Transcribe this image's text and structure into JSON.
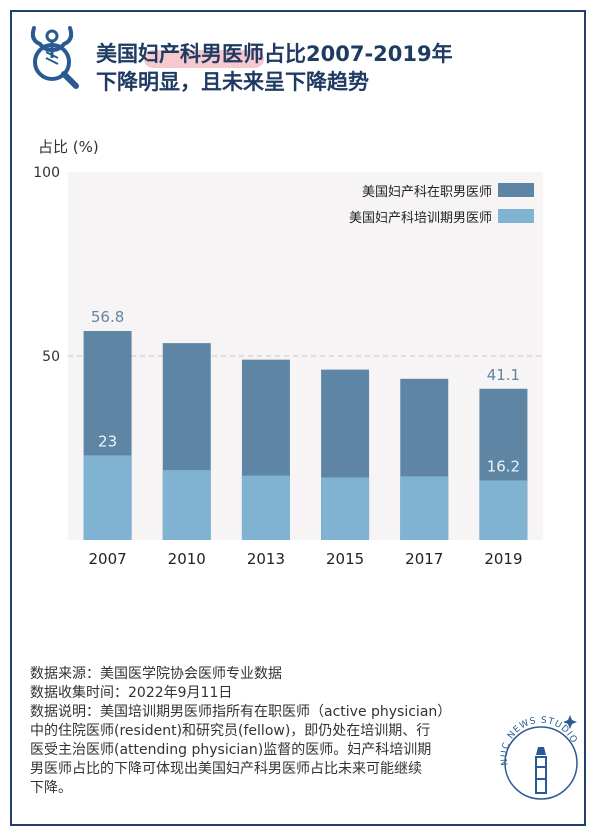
{
  "header": {
    "title_line1": "美国妇产科男医师占比2007-2019年",
    "title_line2": "下降明显，且未来呈下降趋势"
  },
  "chart_data": {
    "type": "bar",
    "stacked": true,
    "title": "美国妇产科男医师占比2007-2019年下降明显，且未来呈下降趋势",
    "ylabel": "占比 (%)",
    "xlabel": "",
    "ylim": [
      0,
      100
    ],
    "yticks": [
      50,
      100
    ],
    "reference_line": 50,
    "categories": [
      "2007",
      "2010",
      "2013",
      "2015",
      "2017",
      "2019"
    ],
    "series": [
      {
        "name": "美国妇产科培训期男医师",
        "values": [
          23,
          19,
          17.5,
          17,
          17.3,
          16.2
        ],
        "color": "#7fb3d1"
      },
      {
        "name": "美国妇产科在职男医师",
        "values": [
          56.8,
          53.5,
          49,
          46.3,
          43.8,
          41.1
        ],
        "color": "#5e86a4"
      }
    ],
    "data_labels": [
      {
        "category": "2007",
        "series": "美国妇产科在职男医师",
        "text": "56.8"
      },
      {
        "category": "2007",
        "series": "美国妇产科培训期男医师",
        "text": "23"
      },
      {
        "category": "2019",
        "series": "美国妇产科在职男医师",
        "text": "41.1"
      },
      {
        "category": "2019",
        "series": "美国妇产科培训期男医师",
        "text": "16.2"
      }
    ],
    "legend": [
      "美国妇产科在职男医师",
      "美国妇产科培训期男医师"
    ],
    "legend_position": "top-right"
  },
  "notes": {
    "source": "数据来源：美国医学院协会医师专业数据",
    "date": "数据收集时间：2022年9月11日",
    "desc1": "数据说明：美国培训期男医师指所有在职医师（active physician）",
    "desc2": "中的住院医师(resident)和研究员(fellow)，即仍处在培训期、行",
    "desc3": "医受主治医师(attending physician)监督的医师。妇产科培训期",
    "desc4": "男医师占比的下降可体现出美国妇产科男医师占比未来可能继续",
    "desc5": "下降。"
  },
  "stamp": {
    "text": "NUC NEWS STUDIO"
  }
}
